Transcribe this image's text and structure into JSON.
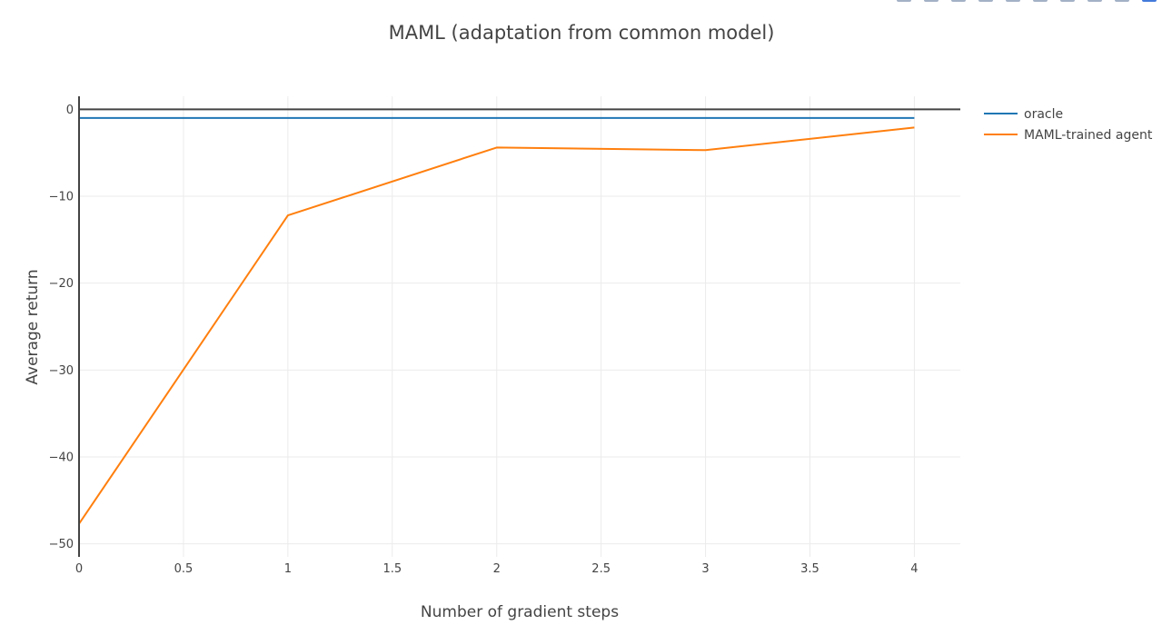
{
  "chart_data": {
    "type": "line",
    "title": "MAML (adaptation from common model)",
    "xlabel": "Number of gradient steps",
    "ylabel": "Average return",
    "xlim": [
      0,
      4.22
    ],
    "ylim": [
      -51.5,
      1.5
    ],
    "xticks": [
      0,
      0.5,
      1,
      1.5,
      2,
      2.5,
      3,
      3.5,
      4
    ],
    "xtick_labels": [
      "0",
      "0.5",
      "1",
      "1.5",
      "2",
      "2.5",
      "3",
      "3.5",
      "4"
    ],
    "yticks": [
      0,
      -10,
      -20,
      -30,
      -40,
      -50
    ],
    "ytick_labels": [
      "0",
      "−10",
      "−20",
      "−30",
      "−40",
      "−50"
    ],
    "grid": true,
    "zeroline": true,
    "legend_position": "top-right",
    "series": [
      {
        "name": "oracle",
        "color": "#1f77b4",
        "x": [
          0,
          1,
          2,
          3,
          4
        ],
        "y": [
          -1.0,
          -1.0,
          -1.0,
          -1.0,
          -1.0
        ]
      },
      {
        "name": "MAML-trained agent",
        "color": "#ff7f0e",
        "x": [
          0,
          1,
          2,
          3,
          4
        ],
        "y": [
          -47.7,
          -12.2,
          -4.4,
          -4.7,
          -2.1
        ]
      }
    ]
  },
  "modebar": {
    "icons": [
      "zoom-icon",
      "pan-icon",
      "box-select-icon",
      "lasso-icon",
      "autoscale-icon",
      "reset-axes-icon",
      "spike-lines-icon",
      "hover-closest-icon",
      "hover-compare-icon",
      "plotly-logo-icon"
    ]
  }
}
